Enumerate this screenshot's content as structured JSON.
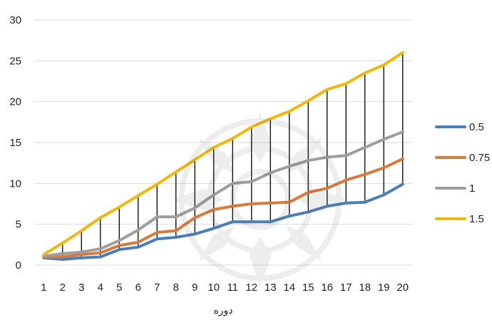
{
  "chart_data": {
    "type": "line",
    "title": "",
    "xlabel": "دوره",
    "ylabel": "",
    "x": [
      1,
      2,
      3,
      4,
      5,
      6,
      7,
      8,
      9,
      10,
      11,
      12,
      13,
      14,
      15,
      16,
      17,
      18,
      19,
      20
    ],
    "ylim": [
      0,
      30
    ],
    "yticks": [
      0,
      5,
      10,
      15,
      20,
      25,
      30
    ],
    "grid": true,
    "legend_position": "right",
    "high_low_lines": true,
    "series": [
      {
        "name": "0.5",
        "color": "#4a7ebb",
        "values": [
          0.9,
          0.7,
          0.9,
          1.0,
          1.9,
          2.2,
          3.2,
          3.4,
          3.8,
          4.5,
          5.3,
          5.3,
          5.3,
          6.0,
          6.5,
          7.2,
          7.6,
          7.7,
          8.6,
          9.9
        ]
      },
      {
        "name": "0.75",
        "color": "#d9793a",
        "values": [
          1.0,
          1.0,
          1.3,
          1.5,
          2.4,
          2.8,
          4.0,
          4.2,
          5.8,
          6.8,
          7.2,
          7.5,
          7.6,
          7.7,
          8.9,
          9.4,
          10.4,
          11.1,
          11.9,
          13.0
        ]
      },
      {
        "name": "1",
        "color": "#9e9e9e",
        "values": [
          1.1,
          1.4,
          1.6,
          2.0,
          3.0,
          4.3,
          5.9,
          5.9,
          7.0,
          8.6,
          10.0,
          10.2,
          11.3,
          12.1,
          12.8,
          13.2,
          13.4,
          14.4,
          15.4,
          16.3
        ]
      },
      {
        "name": "1.5",
        "color": "#f2b807",
        "values": [
          1.3,
          2.7,
          4.2,
          5.8,
          7.1,
          8.5,
          9.9,
          11.4,
          12.9,
          14.4,
          15.5,
          16.9,
          17.9,
          18.8,
          20.1,
          21.5,
          22.2,
          23.5,
          24.5,
          26.0
        ]
      }
    ]
  }
}
